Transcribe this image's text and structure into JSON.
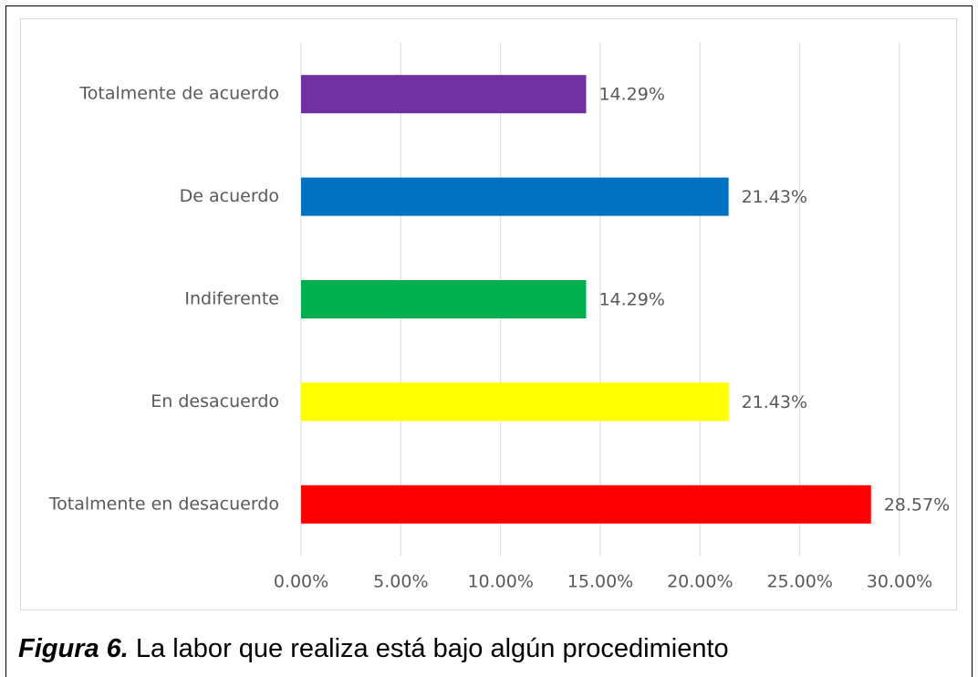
{
  "chart_data": {
    "type": "barh",
    "categories": [
      "Totalmente de acuerdo",
      "De acuerdo",
      "Indiferente",
      "En desacuerdo",
      "Totalmente en desacuerdo"
    ],
    "values": [
      14.29,
      21.43,
      14.29,
      21.43,
      28.57
    ],
    "value_labels": [
      "14.29%",
      "21.43%",
      "14.29%",
      "21.43%",
      "28.57%"
    ],
    "colors": [
      "#7030a0",
      "#0070c0",
      "#00b050",
      "#ffff00",
      "#ff0000"
    ],
    "xlim": [
      0,
      30
    ],
    "xticks": [
      {
        "value": 0,
        "label": "0.00%"
      },
      {
        "value": 5,
        "label": "5.00%"
      },
      {
        "value": 10,
        "label": "10.00%"
      },
      {
        "value": 15,
        "label": "15.00%"
      },
      {
        "value": 20,
        "label": "20.00%"
      },
      {
        "value": 25,
        "label": "25.00%"
      },
      {
        "value": 30,
        "label": "30.00%"
      }
    ],
    "grid": true
  },
  "caption": {
    "label": "Figura 6.",
    "text": "La labor que realiza está bajo algún procedimiento"
  }
}
